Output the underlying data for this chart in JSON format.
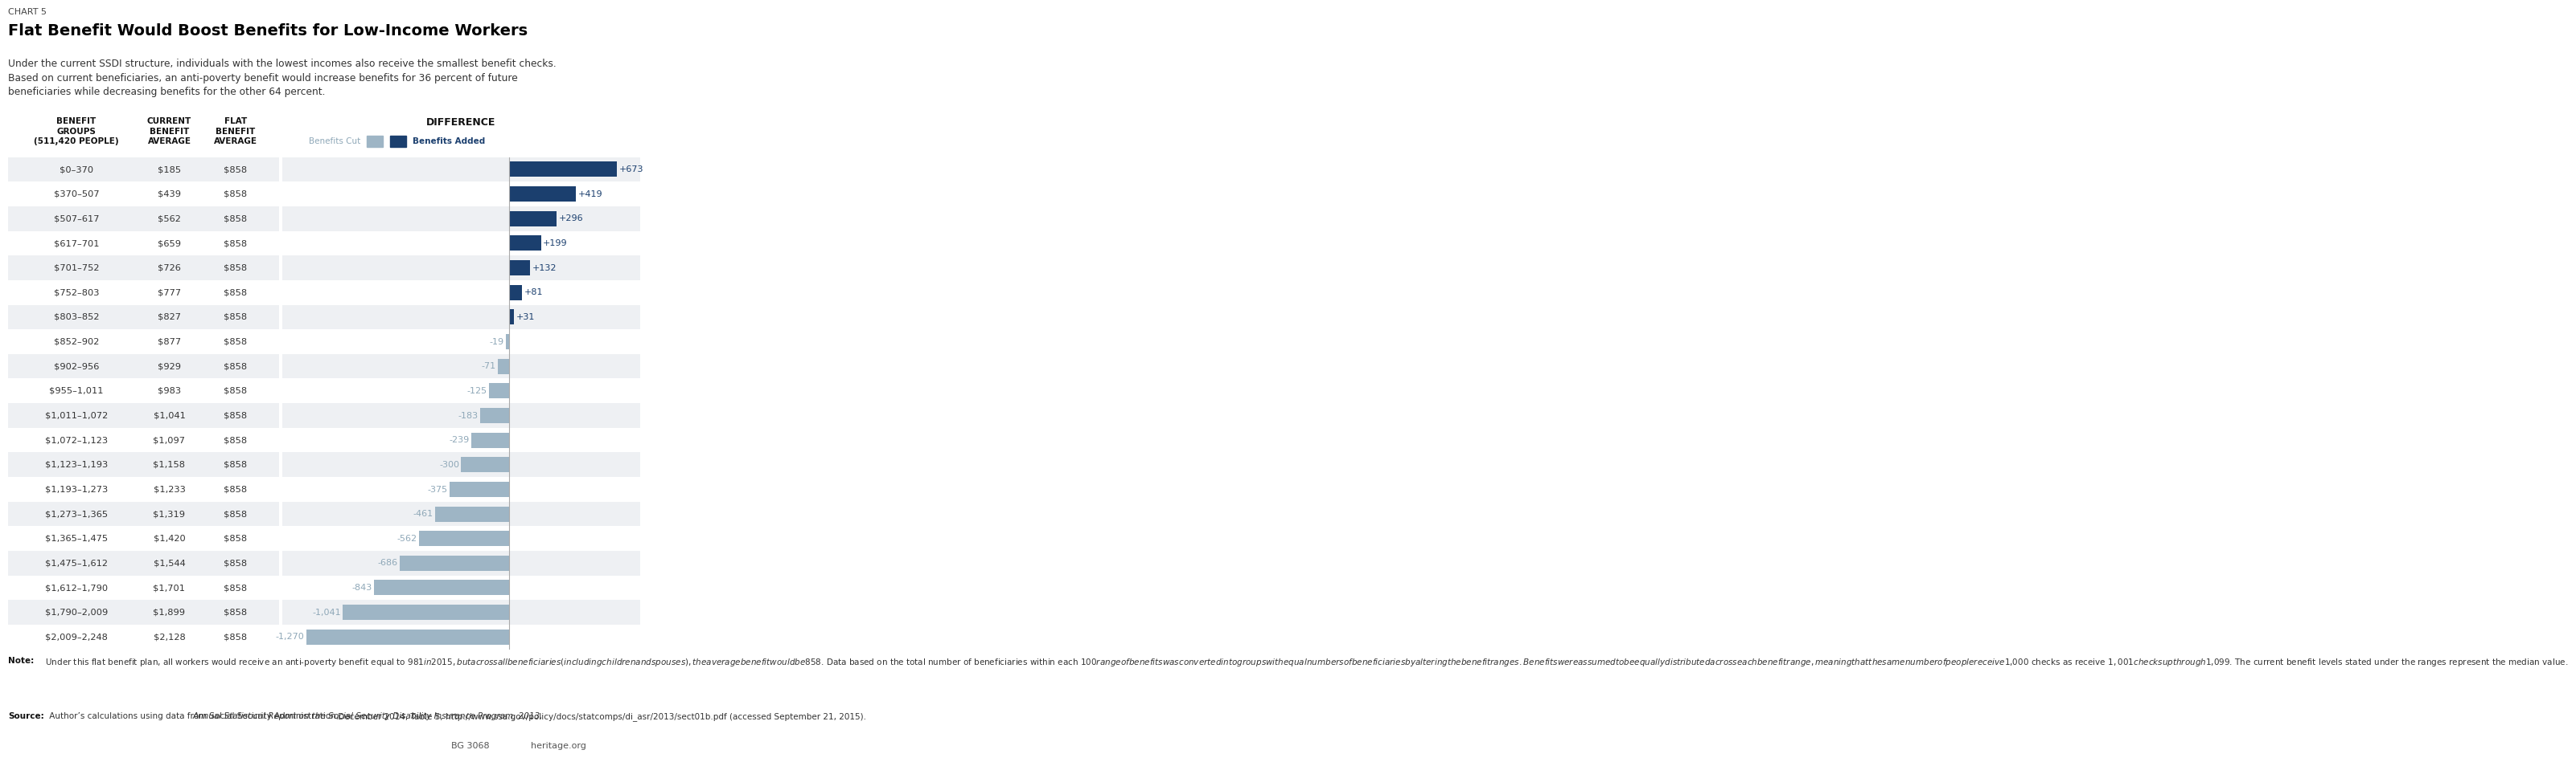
{
  "chart_label": "CHART 5",
  "title": "Flat Benefit Would Boost Benefits for Low-Income Workers",
  "subtitle": "Under the current SSDI structure, individuals with the lowest incomes also receive the smallest benefit checks.\nBased on current beneficiaries, an anti-poverty benefit would increase benefits for 36 percent of future\nbeneficiaries while decreasing benefits for the other 64 percent.",
  "col1_header": "BENEFIT\nGROUPS\n(511,420 PEOPLE)",
  "col2_header": "CURRENT\nBENEFIT\nAVERAGE",
  "col3_header": "FLAT\nBENEFIT\nAVERAGE",
  "bar_header": "DIFFERENCE",
  "legend_cut": "Benefits Cut",
  "legend_added": "Benefits Added",
  "categories": [
    "$0–370",
    "$370–507",
    "$507–617",
    "$617–701",
    "$701–752",
    "$752–803",
    "$803–852",
    "$852–902",
    "$902–956",
    "$955–1,011",
    "$1,011–1,072",
    "$1,072–1,123",
    "$1,123–1,193",
    "$1,193–1,273",
    "$1,273–1,365",
    "$1,365–1,475",
    "$1,475–1,612",
    "$1,612–1,790",
    "$1,790–2,009",
    "$2,009–2,248"
  ],
  "current_benefit": [
    "$185",
    "$439",
    "$562",
    "$659",
    "$726",
    "$777",
    "$827",
    "$877",
    "$929",
    "$983",
    "$1,041",
    "$1,097",
    "$1,158",
    "$1,233",
    "$1,319",
    "$1,420",
    "$1,544",
    "$1,701",
    "$1,899",
    "$2,128"
  ],
  "flat_benefit": [
    "$858",
    "$858",
    "$858",
    "$858",
    "$858",
    "$858",
    "$858",
    "$858",
    "$858",
    "$858",
    "$858",
    "$858",
    "$858",
    "$858",
    "$858",
    "$858",
    "$858",
    "$858",
    "$858",
    "$858"
  ],
  "differences": [
    673,
    419,
    296,
    199,
    132,
    81,
    31,
    -19,
    -71,
    -125,
    -183,
    -239,
    -300,
    -375,
    -461,
    -562,
    -686,
    -843,
    -1041,
    -1270
  ],
  "diff_labels": [
    "+673",
    "+419",
    "+296",
    "+199",
    "+132",
    "+81",
    "+31",
    "-19",
    "-71",
    "-125",
    "-183",
    "-239",
    "-300",
    "-375",
    "-461",
    "-562",
    "-686",
    "-843",
    "-1,041",
    "-1,270"
  ],
  "positive_color": "#1b3f6e",
  "negative_color": "#9eb5c5",
  "positive_label_color": "#1b3f6e",
  "negative_label_color": "#8fa8b8",
  "row_bg_even": "#eef0f3",
  "row_bg_odd": "#ffffff",
  "note_bold": "Note:",
  "note_text": " Under this flat benefit plan, all workers would receive an anti-poverty benefit equal to $981 in 2015, but across all beneficiaries (including children and spouses), the average benefit would be $858. Data based on the total number of beneficiaries within each $100 range of benefits was converted into groups with equal numbers of beneficiaries by altering the benefit ranges. Benefits were assumed to be equally distributed across each benefit range, meaning that the same number of people receive $1,000 checks as receive $1,001 checks up through $1,099. The current benefit levels stated under the ranges represent the median value.",
  "source_bold": "Source:",
  "source_text": " Author’s calculations using data from Social Security Administration, ",
  "source_italic": "Annual Statistical Report on the Social Security Disability Insurance Program, 2013,",
  "source_rest": " December 2014, Table 5, http://www.ssa.gov/policy/docs/statcomps/di_asr/2013/sect01b.pdf (accessed September 21, 2015).",
  "bg_label": "BG 3068",
  "watermark": "heritage.org",
  "bar_xlim_min": -1420,
  "bar_xlim_max": 820
}
